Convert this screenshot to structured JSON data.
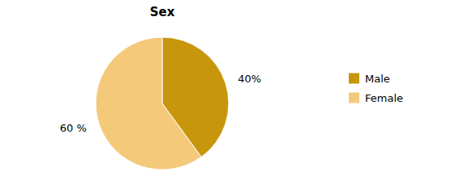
{
  "chart_data": {
    "type": "pie",
    "title": "Sex",
    "categories": [
      "Male",
      "Female"
    ],
    "values": [
      40,
      60
    ],
    "value_labels": [
      "40%",
      "60 %"
    ],
    "colors": [
      "#C8960C",
      "#F5C97A"
    ],
    "data_labels": true,
    "legend": "right"
  }
}
